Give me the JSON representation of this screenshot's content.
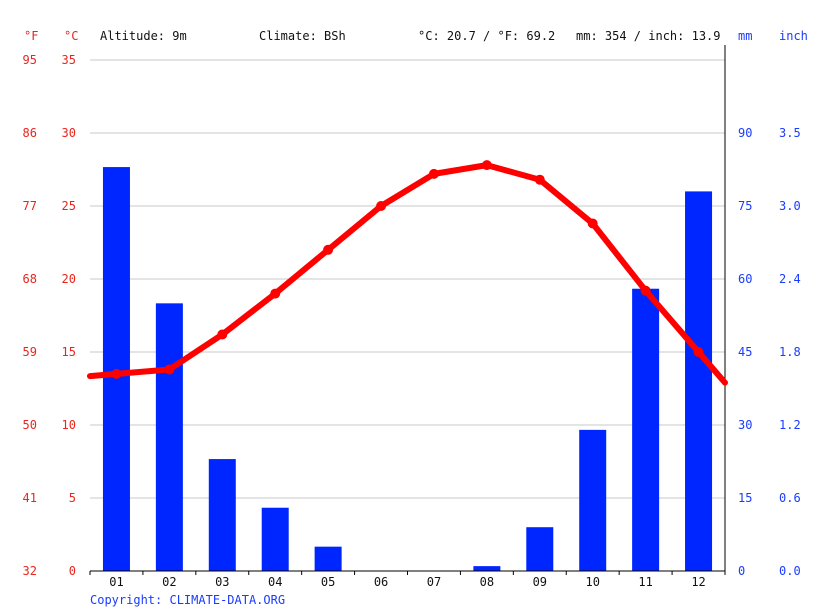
{
  "header": {
    "unit_f": "°F",
    "unit_c": "°C",
    "altitude": "Altitude: 9m",
    "climate": "Climate: BSh",
    "temp_avg": "°C: 20.7 / °F: 69.2",
    "precip_total": "mm: 354 / inch: 13.9",
    "unit_mm": "mm",
    "unit_inch": "inch"
  },
  "axes": {
    "celsius_ticks": [
      "35",
      "30",
      "25",
      "20",
      "15",
      "10",
      "5",
      "0"
    ],
    "fahrenheit_ticks": [
      "95",
      "86",
      "77",
      "68",
      "59",
      "50",
      "41",
      "32"
    ],
    "mm_ticks": [
      "90",
      "75",
      "60",
      "45",
      "30",
      "15",
      "0"
    ],
    "inch_ticks": [
      "3.5",
      "3.0",
      "2.4",
      "1.8",
      "1.2",
      "0.6",
      "0.0"
    ]
  },
  "copyright": "Copyright: CLIMATE-DATA.ORG",
  "colors": {
    "temperature": "#ff0000",
    "precipitation": "#0026ff",
    "axis_red": "#e8261e",
    "axis_blue": "#1a3cff"
  },
  "chart_data": {
    "type": "bar",
    "categories": [
      "01",
      "02",
      "03",
      "04",
      "05",
      "06",
      "07",
      "08",
      "09",
      "10",
      "11",
      "12"
    ],
    "series": [
      {
        "type": "bar",
        "axis": "mm",
        "values": [
          83,
          55,
          23,
          13,
          5,
          0,
          0,
          1,
          9,
          29,
          58,
          78
        ]
      },
      {
        "type": "line",
        "axis": "celsius",
        "values": [
          13.5,
          13.8,
          16.2,
          19.0,
          22.0,
          25.0,
          27.2,
          27.8,
          26.8,
          23.8,
          19.2,
          15.0
        ]
      }
    ],
    "celsius_range": [
      0,
      35
    ],
    "mm_range": [
      0,
      105
    ],
    "grid": true
  }
}
